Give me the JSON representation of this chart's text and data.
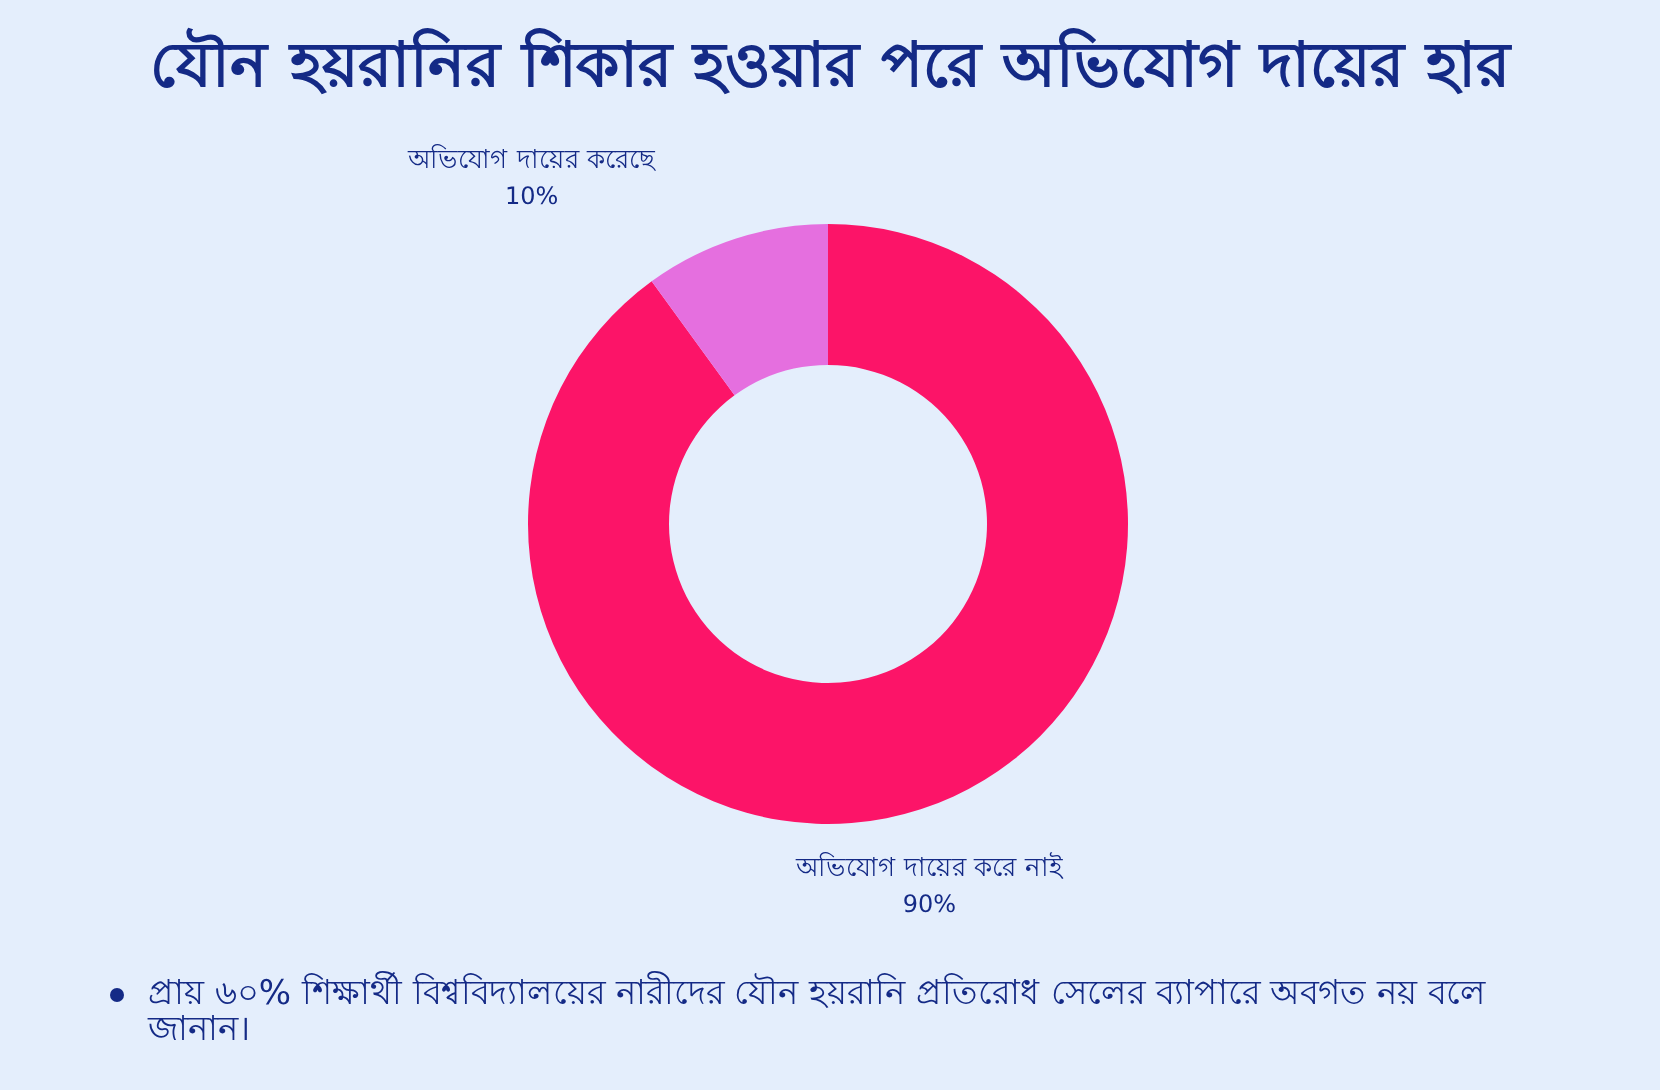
{
  "chart_data": {
    "type": "donut",
    "title": "যৌন হয়রানির শিকার হওয়ার পরে অভিযোগ দায়ের হার",
    "categories": [
      "অভিযোগ দায়ের করে নাই",
      "অভিযোগ দায়ের করেছে"
    ],
    "values": [
      90,
      10
    ],
    "colors": [
      "#fc1468",
      "#e56fdf"
    ],
    "value_labels": [
      "90%",
      "10%"
    ],
    "annotations": [
      "প্রায় ৬০% শিক্ষার্থী বিশ্ববিদ্যালয়ের নারীদের যৌন হয়রানি প্রতিরোধ সেলের ব্যাপারে অবগত নয় বলে জানান।"
    ]
  }
}
